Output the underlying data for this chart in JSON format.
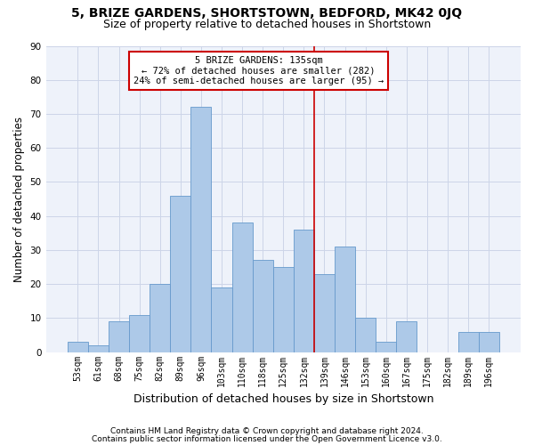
{
  "title": "5, BRIZE GARDENS, SHORTSTOWN, BEDFORD, MK42 0JQ",
  "subtitle": "Size of property relative to detached houses in Shortstown",
  "xlabel": "Distribution of detached houses by size in Shortstown",
  "ylabel": "Number of detached properties",
  "footer_line1": "Contains HM Land Registry data © Crown copyright and database right 2024.",
  "footer_line2": "Contains public sector information licensed under the Open Government Licence v3.0.",
  "categories": [
    "53sqm",
    "61sqm",
    "68sqm",
    "75sqm",
    "82sqm",
    "89sqm",
    "96sqm",
    "103sqm",
    "110sqm",
    "118sqm",
    "125sqm",
    "132sqm",
    "139sqm",
    "146sqm",
    "153sqm",
    "160sqm",
    "167sqm",
    "175sqm",
    "182sqm",
    "189sqm",
    "196sqm"
  ],
  "values": [
    3,
    2,
    9,
    11,
    20,
    46,
    72,
    19,
    38,
    27,
    25,
    36,
    23,
    31,
    10,
    3,
    9,
    0,
    0,
    6,
    6
  ],
  "bar_color": "#adc9e8",
  "bar_edge_color": "#6699cc",
  "property_label": "5 BRIZE GARDENS: 135sqm",
  "pct_smaller": 72,
  "num_smaller": 282,
  "pct_larger": 24,
  "num_larger": 95,
  "vline_x_index": 11.5,
  "annotation_box_color": "#cc0000",
  "ylim": [
    0,
    90
  ],
  "yticks": [
    0,
    10,
    20,
    30,
    40,
    50,
    60,
    70,
    80,
    90
  ],
  "grid_color": "#ccd5e8",
  "bg_color": "#eef2fa",
  "title_fontsize": 10,
  "subtitle_fontsize": 9,
  "axis_label_fontsize": 8.5,
  "tick_fontsize": 7,
  "footer_fontsize": 6.5,
  "annot_fontsize": 7.5
}
